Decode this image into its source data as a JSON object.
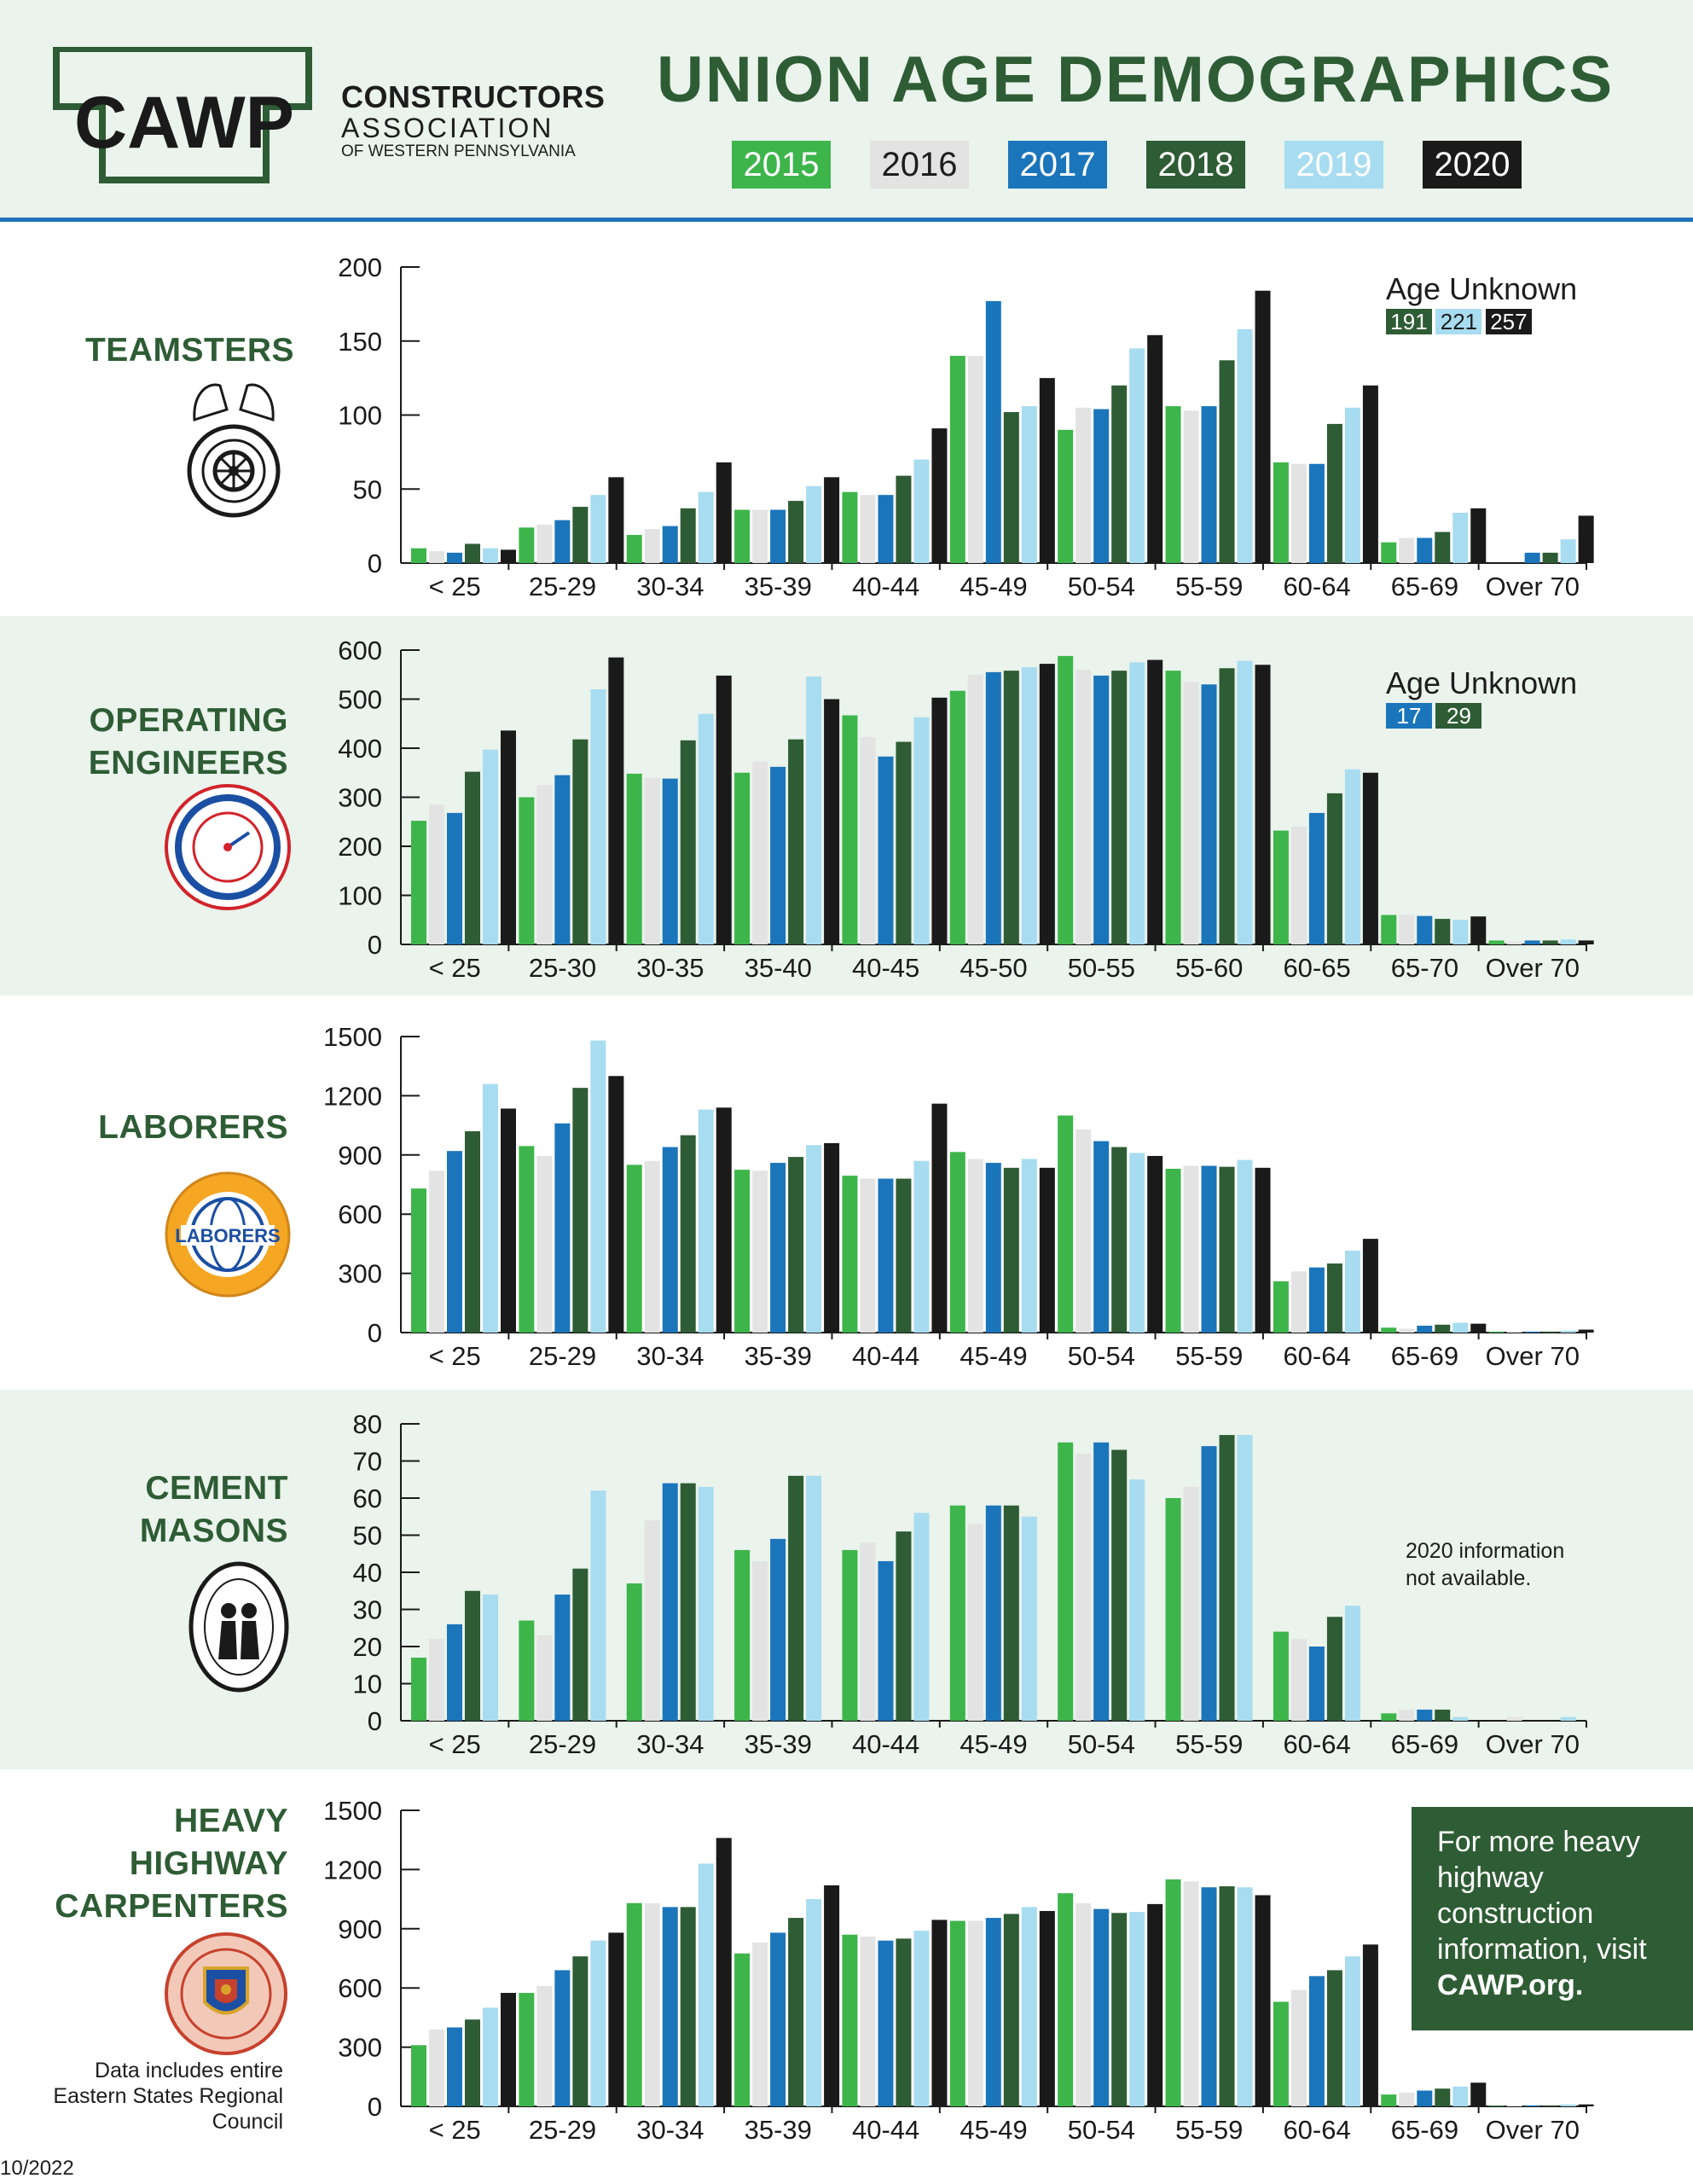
{
  "header": {
    "title": "UNION AGE DEMOGRAPHICS",
    "logo_text": "CAWP",
    "org_line1": "CONSTRUCTORS",
    "org_line2": "ASSOCIATION",
    "org_line3": "OF WESTERN PENNSYLVANIA",
    "legend": [
      {
        "label": "2015",
        "bg": "#3db54a",
        "fg": "#ffffff"
      },
      {
        "label": "2016",
        "bg": "#e3e3e3",
        "fg": "#1d1d1d"
      },
      {
        "label": "2017",
        "bg": "#1b75bb",
        "fg": "#ffffff"
      },
      {
        "label": "2018",
        "bg": "#2e5c34",
        "fg": "#ffffff"
      },
      {
        "label": "2019",
        "bg": "#a8dcf0",
        "fg": "#ffffff"
      },
      {
        "label": "2020",
        "bg": "#1a1a1a",
        "fg": "#ffffff"
      }
    ]
  },
  "colors": {
    "2015": "#3db54a",
    "2016": "#e3e3e3",
    "2017": "#1b75bb",
    "2018": "#2e5c34",
    "2019": "#a8dcf0",
    "2020": "#1a1a1a",
    "title_green": "#2e5c34",
    "band": "#eaf3ec",
    "rule_blue": "#2173b8"
  },
  "unions": [
    {
      "name_lines": [
        "TEAMSTERS"
      ],
      "emblem": "teamsters-emblem"
    },
    {
      "name_lines": [
        "OPERATING",
        "ENGINEERS"
      ],
      "emblem": "operating-engineers-emblem"
    },
    {
      "name_lines": [
        "LABORERS"
      ],
      "emblem": "laborers-emblem",
      "emblem_text": "LABORERS"
    },
    {
      "name_lines": [
        "CEMENT",
        "MASONS"
      ],
      "emblem": "cement-masons-emblem"
    },
    {
      "name_lines": [
        "HEAVY",
        "HIGHWAY",
        "CARPENTERS"
      ],
      "emblem": "carpenters-emblem"
    }
  ],
  "notes": {
    "age_unknown_label": "Age Unknown",
    "teamsters_unknown": [
      {
        "year": "2018",
        "value": "191"
      },
      {
        "year": "2019",
        "value": "221"
      },
      {
        "year": "2020",
        "value": "257"
      }
    ],
    "engineers_unknown": [
      {
        "year": "2017",
        "value": "17"
      },
      {
        "year": "2018",
        "value": "29"
      }
    ],
    "cement_note_line1": "2020 information",
    "cement_note_line2": "not available.",
    "carpenters_note": "Data includes entire Eastern States Regional Council",
    "cta_line1": "For more heavy highway construction information, visit ",
    "cta_link": "CAWP.org.",
    "date": "10/2022"
  },
  "chart_data": [
    {
      "type": "bar",
      "union": "TEAMSTERS",
      "categories": [
        "< 25",
        "25-29",
        "30-34",
        "35-39",
        "40-44",
        "45-49",
        "50-54",
        "55-59",
        "60-64",
        "65-69",
        "Over 70"
      ],
      "ylim": [
        0,
        200
      ],
      "yticks": [
        0,
        50,
        100,
        150,
        200
      ],
      "series": [
        {
          "name": "2015",
          "values": [
            10,
            24,
            19,
            36,
            48,
            140,
            90,
            106,
            68,
            14,
            0
          ]
        },
        {
          "name": "2016",
          "values": [
            8,
            26,
            23,
            36,
            46,
            140,
            105,
            103,
            67,
            17,
            0
          ]
        },
        {
          "name": "2017",
          "values": [
            7,
            29,
            25,
            36,
            46,
            177,
            104,
            106,
            67,
            17,
            7
          ]
        },
        {
          "name": "2018",
          "values": [
            13,
            38,
            37,
            42,
            59,
            102,
            120,
            137,
            94,
            21,
            7
          ]
        },
        {
          "name": "2019",
          "values": [
            10,
            46,
            48,
            52,
            70,
            106,
            145,
            158,
            105,
            34,
            16
          ]
        },
        {
          "name": "2020",
          "values": [
            9,
            58,
            68,
            58,
            91,
            125,
            154,
            184,
            120,
            37,
            32
          ]
        }
      ]
    },
    {
      "type": "bar",
      "union": "OPERATING ENGINEERS",
      "categories": [
        "< 25",
        "25-30",
        "30-35",
        "35-40",
        "40-45",
        "45-50",
        "50-55",
        "55-60",
        "60-65",
        "65-70",
        "Over 70"
      ],
      "ylim": [
        0,
        600
      ],
      "yticks": [
        0,
        100,
        200,
        300,
        400,
        500,
        600
      ],
      "series": [
        {
          "name": "2015",
          "values": [
            252,
            300,
            348,
            350,
            467,
            517,
            588,
            558,
            232,
            60,
            8
          ]
        },
        {
          "name": "2016",
          "values": [
            285,
            325,
            340,
            373,
            423,
            550,
            560,
            535,
            240,
            60,
            5
          ]
        },
        {
          "name": "2017",
          "values": [
            268,
            345,
            338,
            362,
            383,
            555,
            548,
            530,
            268,
            58,
            8
          ]
        },
        {
          "name": "2018",
          "values": [
            352,
            418,
            416,
            418,
            413,
            558,
            558,
            563,
            308,
            52,
            8
          ]
        },
        {
          "name": "2019",
          "values": [
            397,
            520,
            470,
            546,
            463,
            565,
            575,
            578,
            357,
            50,
            10
          ]
        },
        {
          "name": "2020",
          "values": [
            436,
            585,
            548,
            500,
            503,
            572,
            580,
            570,
            350,
            57,
            8
          ]
        }
      ]
    },
    {
      "type": "bar",
      "union": "LABORERS",
      "categories": [
        "< 25",
        "25-29",
        "30-34",
        "35-39",
        "40-44",
        "45-49",
        "50-54",
        "55-59",
        "60-64",
        "65-69",
        "Over 70"
      ],
      "ylim": [
        0,
        1500
      ],
      "yticks": [
        0,
        300,
        600,
        900,
        1200,
        1500
      ],
      "series": [
        {
          "name": "2015",
          "values": [
            730,
            945,
            850,
            825,
            795,
            915,
            1100,
            830,
            260,
            25,
            5
          ]
        },
        {
          "name": "2016",
          "values": [
            820,
            895,
            870,
            820,
            780,
            880,
            1030,
            845,
            310,
            20,
            5
          ]
        },
        {
          "name": "2017",
          "values": [
            920,
            1060,
            940,
            860,
            780,
            860,
            970,
            845,
            330,
            35,
            5
          ]
        },
        {
          "name": "2018",
          "values": [
            1020,
            1240,
            1000,
            890,
            780,
            835,
            940,
            840,
            350,
            40,
            5
          ]
        },
        {
          "name": "2019",
          "values": [
            1260,
            1480,
            1130,
            950,
            870,
            880,
            910,
            875,
            415,
            50,
            10
          ]
        },
        {
          "name": "2020",
          "values": [
            1135,
            1300,
            1140,
            960,
            1160,
            835,
            895,
            835,
            475,
            45,
            15
          ]
        }
      ]
    },
    {
      "type": "bar",
      "union": "CEMENT MASONS",
      "categories": [
        "< 25",
        "25-29",
        "30-34",
        "35-39",
        "40-44",
        "45-49",
        "50-54",
        "55-59",
        "60-64",
        "65-69",
        "Over 70"
      ],
      "ylim": [
        0,
        80
      ],
      "yticks": [
        0,
        10,
        20,
        30,
        40,
        50,
        60,
        70,
        80
      ],
      "series": [
        {
          "name": "2015",
          "values": [
            17,
            27,
            37,
            46,
            46,
            58,
            75,
            60,
            24,
            2,
            0
          ]
        },
        {
          "name": "2016",
          "values": [
            22,
            23,
            54,
            43,
            48,
            53,
            72,
            63,
            22,
            3,
            1
          ]
        },
        {
          "name": "2017",
          "values": [
            26,
            34,
            64,
            49,
            43,
            58,
            75,
            74,
            20,
            3,
            0
          ]
        },
        {
          "name": "2018",
          "values": [
            35,
            41,
            64,
            66,
            51,
            58,
            73,
            77,
            28,
            3,
            0
          ]
        },
        {
          "name": "2019",
          "values": [
            34,
            62,
            63,
            66,
            56,
            55,
            65,
            77,
            31,
            1,
            1
          ]
        }
      ]
    },
    {
      "type": "bar",
      "union": "HEAVY HIGHWAY CARPENTERS",
      "categories": [
        "< 25",
        "25-29",
        "30-34",
        "35-39",
        "40-44",
        "45-49",
        "50-54",
        "55-59",
        "60-64",
        "65-69",
        "Over 70"
      ],
      "ylim": [
        0,
        1500
      ],
      "yticks": [
        0,
        300,
        600,
        900,
        1200,
        1500
      ],
      "series": [
        {
          "name": "2015",
          "values": [
            310,
            575,
            1030,
            775,
            870,
            940,
            1080,
            1150,
            530,
            60,
            3
          ]
        },
        {
          "name": "2016",
          "values": [
            390,
            610,
            1030,
            830,
            860,
            940,
            1030,
            1140,
            590,
            70,
            5
          ]
        },
        {
          "name": "2017",
          "values": [
            400,
            690,
            1010,
            880,
            840,
            955,
            1000,
            1110,
            660,
            80,
            5
          ]
        },
        {
          "name": "2018",
          "values": [
            440,
            760,
            1010,
            955,
            850,
            975,
            980,
            1115,
            690,
            90,
            5
          ]
        },
        {
          "name": "2019",
          "values": [
            500,
            840,
            1230,
            1050,
            890,
            1010,
            985,
            1110,
            760,
            100,
            10
          ]
        },
        {
          "name": "2020",
          "values": [
            575,
            880,
            1360,
            1120,
            945,
            990,
            1025,
            1070,
            820,
            120,
            10
          ]
        }
      ]
    }
  ]
}
